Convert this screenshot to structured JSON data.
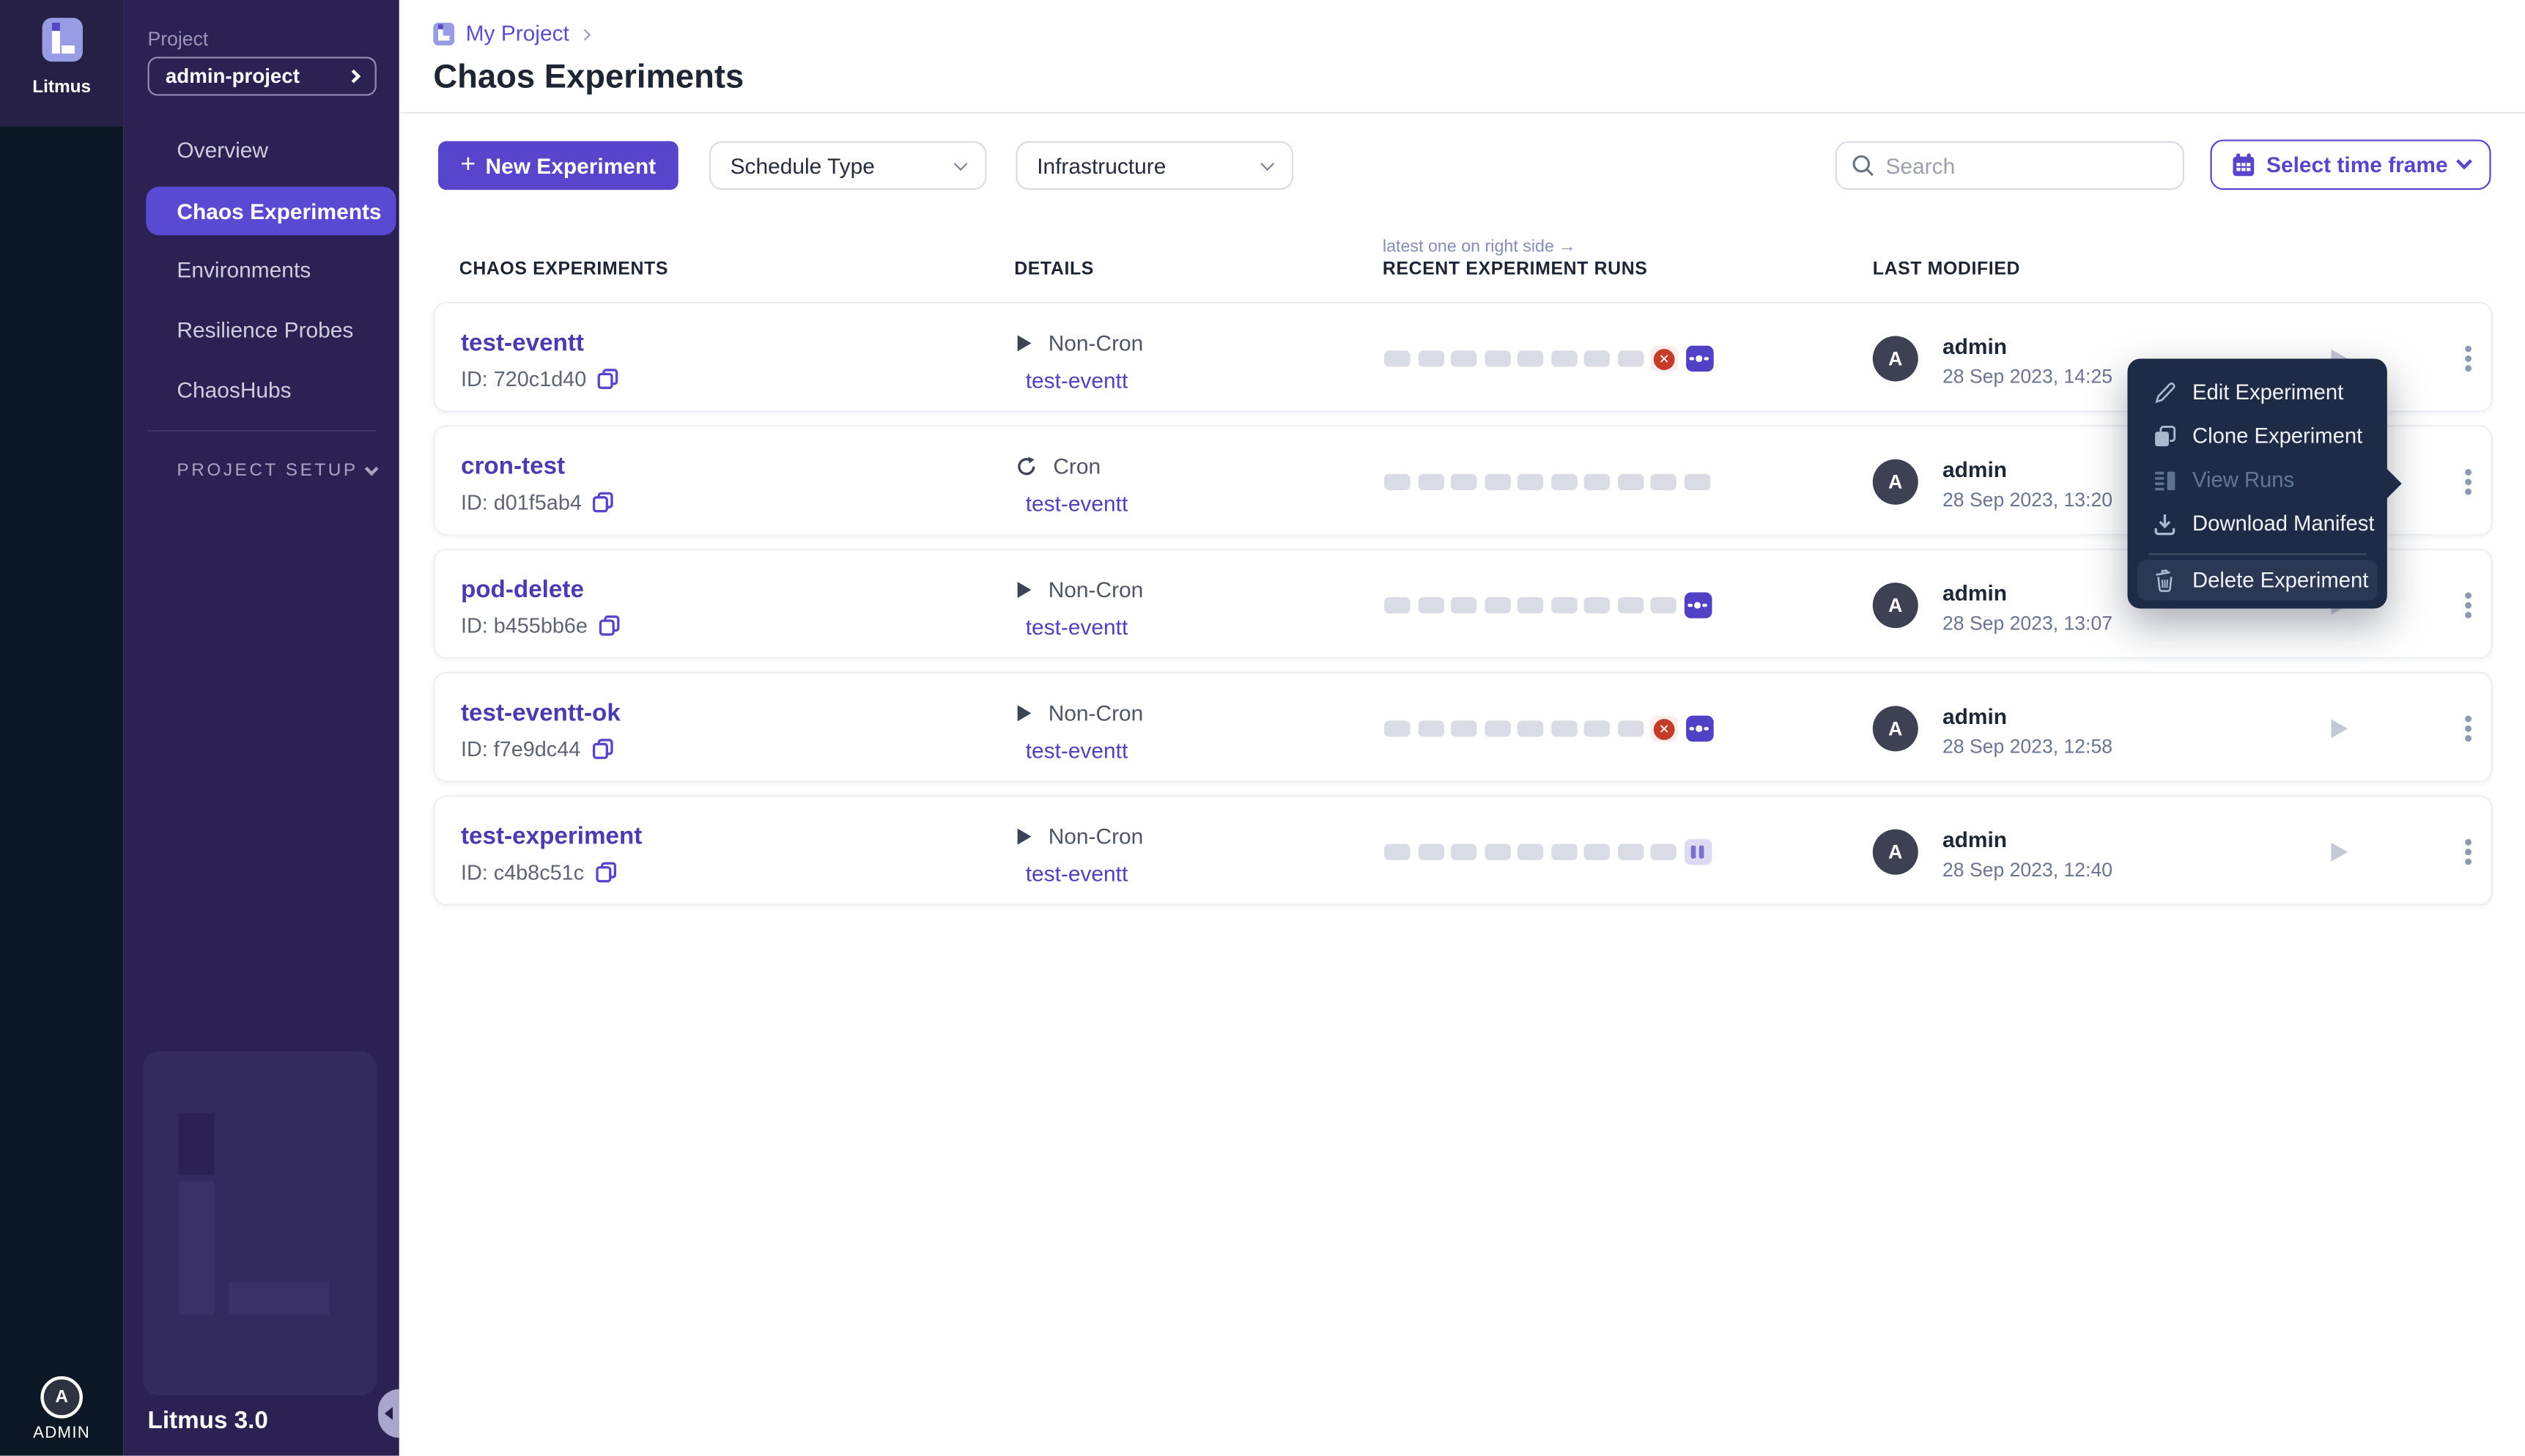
{
  "colors": {
    "accent": "#5745cb",
    "sidebar_purple": "#2b2253",
    "rail_navy": "#0d1827",
    "active_nav": "#5a49d2",
    "experiment_name": "#4a3cb0",
    "link_purple": "#4f43bd",
    "failed_red": "#c53b2a",
    "running_purple": "#5142c5",
    "paused_lilac": "#dddaf5",
    "pill_gray": "#d9dbe5",
    "menu_bg": "#1e2b47"
  },
  "brand": {
    "logo_label": "Litmus",
    "version": "Litmus 3.0",
    "admin_rail_label": "ADMIN",
    "admin_initial": "A"
  },
  "sidebar": {
    "project_label": "Project",
    "project_value": "admin-project",
    "items": [
      {
        "label": "Overview",
        "active": false
      },
      {
        "label": "Chaos Experiments",
        "active": true
      },
      {
        "label": "Environments",
        "active": false
      },
      {
        "label": "Resilience Probes",
        "active": false
      },
      {
        "label": "ChaosHubs",
        "active": false
      }
    ],
    "setup_label": "PROJECT SETUP"
  },
  "breadcrumb": {
    "project": "My Project"
  },
  "page": {
    "title": "Chaos Experiments"
  },
  "toolbar": {
    "new_experiment_plus": "+",
    "new_experiment": "New Experiment",
    "schedule_type": "Schedule Type",
    "infrastructure": "Infrastructure",
    "search_placeholder": "Search",
    "time_frame": "Select time frame"
  },
  "table": {
    "runs_hint": "latest one on right side →",
    "headers": {
      "experiments": "CHAOS EXPERIMENTS",
      "details": "DETAILS",
      "runs": "RECENT EXPERIMENT RUNS",
      "modified": "LAST MODIFIED"
    }
  },
  "rows": [
    {
      "name": "test-eventt",
      "id": "ID: 720c1d40",
      "schedule": "Non-Cron",
      "cron": false,
      "infra": "test-eventt",
      "runs": [
        "na",
        "na",
        "na",
        "na",
        "na",
        "na",
        "na",
        "na",
        "failed",
        "running"
      ],
      "by": "admin",
      "initial": "A",
      "date": "28 Sep 2023, 14:25"
    },
    {
      "name": "cron-test",
      "id": "ID: d01f5ab4",
      "schedule": "Cron",
      "cron": true,
      "infra": "test-eventt",
      "runs": [
        "na",
        "na",
        "na",
        "na",
        "na",
        "na",
        "na",
        "na",
        "na",
        "na"
      ],
      "by": "admin",
      "initial": "A",
      "date": "28 Sep 2023, 13:20"
    },
    {
      "name": "pod-delete",
      "id": "ID: b455bb6e",
      "schedule": "Non-Cron",
      "cron": false,
      "infra": "test-eventt",
      "runs": [
        "na",
        "na",
        "na",
        "na",
        "na",
        "na",
        "na",
        "na",
        "na",
        "running"
      ],
      "by": "admin",
      "initial": "A",
      "date": "28 Sep 2023, 13:07"
    },
    {
      "name": "test-eventt-ok",
      "id": "ID: f7e9dc44",
      "schedule": "Non-Cron",
      "cron": false,
      "infra": "test-eventt",
      "runs": [
        "na",
        "na",
        "na",
        "na",
        "na",
        "na",
        "na",
        "na",
        "failed",
        "running"
      ],
      "by": "admin",
      "initial": "A",
      "date": "28 Sep 2023, 12:58"
    },
    {
      "name": "test-experiment",
      "id": "ID: c4b8c51c",
      "schedule": "Non-Cron",
      "cron": false,
      "infra": "test-eventt",
      "runs": [
        "na",
        "na",
        "na",
        "na",
        "na",
        "na",
        "na",
        "na",
        "na",
        "paused"
      ],
      "by": "admin",
      "initial": "A",
      "date": "28 Sep 2023, 12:40"
    }
  ],
  "context_menu": {
    "items": [
      {
        "label": "Edit Experiment",
        "disabled": false
      },
      {
        "label": "Clone Experiment",
        "disabled": false
      },
      {
        "label": "View Runs",
        "disabled": true
      },
      {
        "label": "Download Manifest",
        "disabled": false
      },
      {
        "label": "Delete Experiment",
        "disabled": false
      }
    ]
  }
}
